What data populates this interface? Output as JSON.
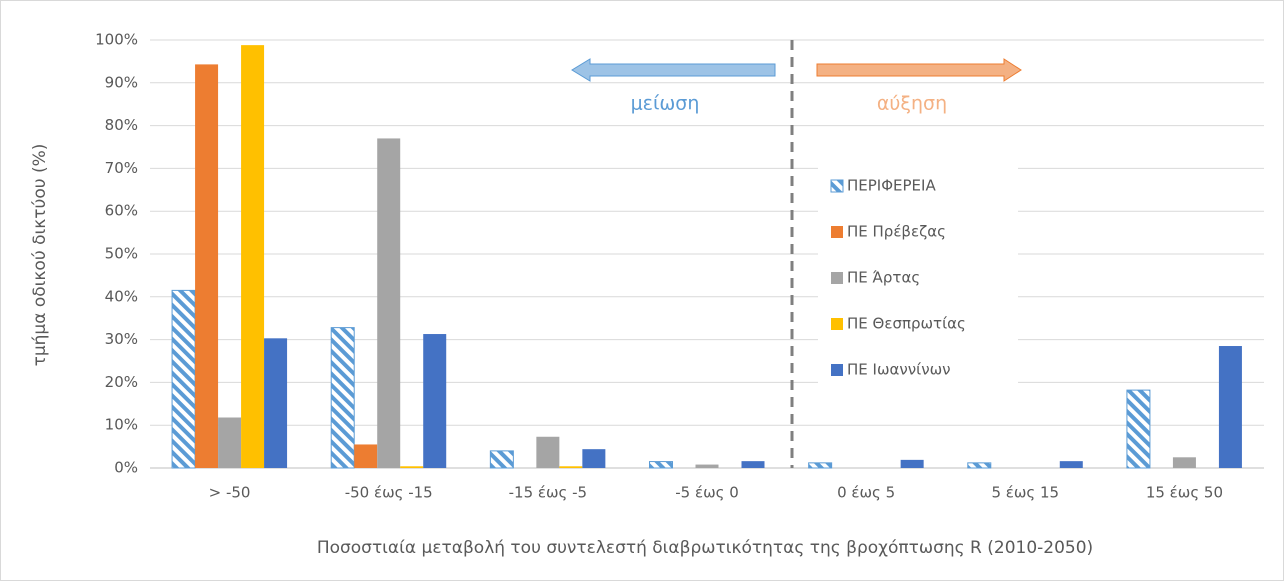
{
  "chart_data": {
    "type": "bar",
    "categories": [
      "> -50",
      "-50 έως -15",
      "-15 έως -5",
      "-5 έως 0",
      "0 έως 5",
      "5 έως 15",
      "15 έως 50"
    ],
    "series": [
      {
        "name": "ΠΕΡΙΦΕΡΕΙΑ",
        "color": "#5b9bd5",
        "pattern": "hatched",
        "values": [
          41.5,
          32.8,
          4.0,
          1.5,
          1.2,
          1.2,
          18.2
        ]
      },
      {
        "name": "ΠΕ Πρέβεζας",
        "color": "#ed7d31",
        "values": [
          94.3,
          5.5,
          0,
          0,
          0,
          0,
          0
        ]
      },
      {
        "name": "ΠΕ Άρτας",
        "color": "#a5a5a5",
        "values": [
          11.8,
          77.0,
          7.3,
          0.8,
          0,
          0,
          2.5
        ]
      },
      {
        "name": "ΠΕ Θεσπρωτίας",
        "color": "#ffc000",
        "values": [
          98.8,
          0.4,
          0.4,
          0,
          0,
          0,
          0
        ]
      },
      {
        "name": "ΠΕ Ιωαννίνων",
        "color": "#4472c4",
        "values": [
          30.3,
          31.3,
          4.4,
          1.6,
          1.9,
          1.6,
          28.5
        ]
      }
    ],
    "ylim": [
      0,
      100
    ],
    "yticks": [
      {
        "value": 0,
        "label": "0%"
      },
      {
        "value": 10,
        "label": "10%"
      },
      {
        "value": 20,
        "label": "20%"
      },
      {
        "value": 30,
        "label": "30%"
      },
      {
        "value": 40,
        "label": "40%"
      },
      {
        "value": 50,
        "label": "50%"
      },
      {
        "value": 60,
        "label": "60%"
      },
      {
        "value": 70,
        "label": "70%"
      },
      {
        "value": 80,
        "label": "80%"
      },
      {
        "value": 90,
        "label": "90%"
      },
      {
        "value": 100,
        "label": "100%"
      }
    ],
    "grid": true,
    "x_label": "Ποσοστιαία μεταβολή του συντελεστή διαβρωτικότητας της βροχόπτωσης R (2010-2050)",
    "y_label": "τμήμα οδικού δικτύου (%)",
    "annotations": [
      "μείωση",
      "αύξηση"
    ],
    "legend": "right"
  }
}
